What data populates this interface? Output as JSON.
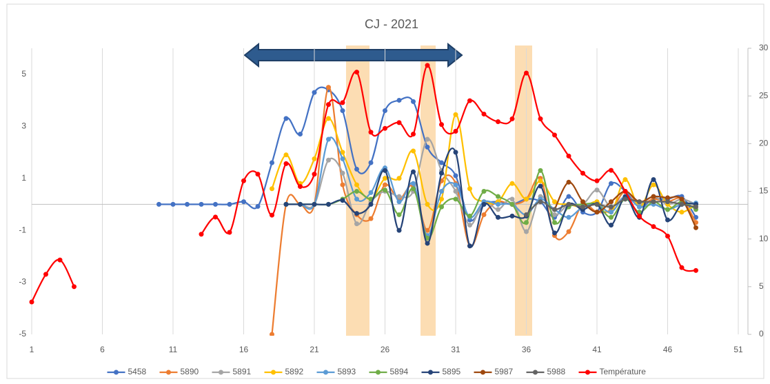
{
  "chart_data": {
    "type": "line",
    "title": "CJ - 2021",
    "x": [
      1,
      2,
      3,
      4,
      5,
      6,
      7,
      8,
      9,
      10,
      11,
      12,
      13,
      14,
      15,
      16,
      17,
      18,
      19,
      20,
      21,
      22,
      23,
      24,
      25,
      26,
      27,
      28,
      29,
      30,
      31,
      32,
      33,
      34,
      35,
      36,
      37,
      38,
      39,
      40,
      41,
      42,
      43,
      44,
      45,
      46,
      47,
      48
    ],
    "xlim": [
      1,
      51
    ],
    "xticks": [
      1,
      6,
      11,
      16,
      21,
      26,
      31,
      36,
      41,
      46,
      51
    ],
    "ylim": [
      -5,
      6
    ],
    "yticks": [
      -5,
      -3,
      -1,
      1,
      3,
      5
    ],
    "y2lim": [
      0,
      30
    ],
    "y2ticks": [
      0,
      5,
      10,
      15,
      20,
      25,
      30
    ],
    "grid": true,
    "legend": "bottom",
    "series": [
      {
        "name": "5458",
        "color": "#4472c4",
        "values": [
          null,
          null,
          null,
          null,
          null,
          null,
          null,
          null,
          null,
          0,
          0,
          0,
          0,
          0,
          0,
          0.1,
          -0.08,
          1.6,
          3.3,
          2.7,
          4.3,
          4.4,
          3.6,
          1.35,
          1.6,
          3.6,
          4.0,
          3.95,
          2.2,
          1.6,
          1.1,
          -0.6,
          0,
          0.1,
          0,
          0.2,
          0.1,
          -0.5,
          0.3,
          -0.3,
          -0.3,
          0.8,
          0.5,
          -0.1,
          0.2,
          0.2,
          0.3,
          -0.5
        ]
      },
      {
        "name": "5890",
        "color": "#ed7d31",
        "values": [
          null,
          null,
          null,
          null,
          null,
          null,
          null,
          null,
          null,
          null,
          null,
          null,
          null,
          null,
          null,
          null,
          null,
          -5,
          0,
          0,
          0,
          4.5,
          0.75,
          -0.4,
          -0.55,
          0.75,
          0.2,
          0.7,
          -1.0,
          0.9,
          0.8,
          -1.6,
          -0.4,
          0.1,
          0,
          0.2,
          1.0,
          -1.2,
          -1.05,
          0,
          -0.3,
          -0.2,
          0.5,
          0,
          0.2,
          0.1,
          0.2,
          -0.7
        ]
      },
      {
        "name": "5891",
        "color": "#a5a5a5",
        "values": [
          null,
          null,
          null,
          null,
          null,
          null,
          null,
          null,
          null,
          null,
          null,
          null,
          null,
          null,
          null,
          null,
          null,
          null,
          0,
          0,
          0,
          1.7,
          1.2,
          -0.75,
          0.1,
          0.5,
          0.3,
          0.5,
          2.5,
          1.3,
          0.5,
          -0.8,
          0.1,
          -0.2,
          0.2,
          -1.05,
          0.3,
          -0.4,
          0,
          0,
          0.55,
          -0.1,
          0.3,
          0,
          0.3,
          0,
          0.2,
          0
        ]
      },
      {
        "name": "5892",
        "color": "#ffc000",
        "values": [
          null,
          null,
          null,
          null,
          null,
          null,
          null,
          null,
          null,
          null,
          null,
          null,
          null,
          null,
          null,
          null,
          null,
          0.6,
          1.9,
          0.8,
          1.75,
          3.3,
          2.0,
          0.75,
          0.2,
          1.0,
          1.0,
          2.05,
          0,
          0.2,
          3.45,
          0.6,
          0.1,
          0.1,
          0.8,
          0.2,
          0.9,
          0.1,
          0,
          -0.1,
          0.1,
          -0.3,
          0.95,
          -0.1,
          0.75,
          0,
          -0.3,
          0
        ]
      },
      {
        "name": "5893",
        "color": "#5b9bd5",
        "values": [
          null,
          null,
          null,
          null,
          null,
          null,
          null,
          null,
          null,
          null,
          null,
          null,
          null,
          null,
          null,
          null,
          null,
          null,
          0,
          0,
          0,
          2.5,
          1.75,
          0.2,
          0.45,
          1.4,
          0.1,
          0.8,
          -1.2,
          0.5,
          0.75,
          -0.5,
          0.1,
          0,
          0,
          -0.4,
          0.2,
          -0.2,
          -0.5,
          -0.1,
          0,
          -0.3,
          0.3,
          -0.1,
          0,
          -0.2,
          0,
          0.05
        ]
      },
      {
        "name": "5894",
        "color": "#70ad47",
        "values": [
          null,
          null,
          null,
          null,
          null,
          null,
          null,
          null,
          null,
          null,
          null,
          null,
          null,
          null,
          null,
          null,
          null,
          null,
          0,
          0,
          0,
          0,
          0.2,
          0.5,
          0.2,
          0.55,
          -0.4,
          0.6,
          -1.3,
          -0.1,
          0.2,
          -0.45,
          0.5,
          0.3,
          0,
          -0.7,
          1.3,
          -0.7,
          -0.1,
          0,
          0,
          -0.5,
          0.2,
          -0.3,
          0.1,
          -0.2,
          0.1,
          -0.2
        ]
      },
      {
        "name": "5895",
        "color": "#264478",
        "values": [
          null,
          null,
          null,
          null,
          null,
          null,
          null,
          null,
          null,
          null,
          null,
          null,
          null,
          null,
          null,
          null,
          null,
          null,
          0,
          0,
          0,
          0,
          0.15,
          -0.35,
          0,
          1.3,
          -1.0,
          1.25,
          -1.5,
          1.2,
          2.0,
          -1.6,
          0,
          -0.5,
          -0.45,
          -0.45,
          0.7,
          -1.1,
          0,
          -0.2,
          0,
          -0.8,
          0.3,
          -0.5,
          0.95,
          -0.6,
          0,
          0
        ]
      },
      {
        "name": "5987",
        "color": "#9e480e",
        "values": [
          null,
          null,
          null,
          null,
          null,
          null,
          null,
          null,
          null,
          null,
          null,
          null,
          null,
          null,
          null,
          null,
          null,
          null,
          null,
          null,
          null,
          null,
          null,
          null,
          null,
          null,
          null,
          null,
          null,
          null,
          null,
          null,
          null,
          null,
          null,
          null,
          null,
          -0.2,
          0.85,
          0.1,
          -0.3,
          0.1,
          0.5,
          0.1,
          0.3,
          0.25,
          0.2,
          -0.9
        ]
      },
      {
        "name": "5988",
        "color": "#636363",
        "values": [
          null,
          null,
          null,
          null,
          null,
          null,
          null,
          null,
          null,
          null,
          null,
          null,
          null,
          null,
          null,
          null,
          null,
          null,
          null,
          null,
          null,
          null,
          null,
          null,
          null,
          null,
          null,
          null,
          null,
          null,
          null,
          null,
          null,
          null,
          null,
          -0.4,
          0.1,
          -0.2,
          0,
          -0.1,
          0,
          -0.1,
          0.2,
          0.1,
          0.1,
          0.1,
          0,
          -0.1
        ]
      },
      {
        "name": "Température",
        "color": "#ff0000",
        "axis": "y2",
        "values": [
          3.4,
          6.3,
          7.8,
          5.0,
          null,
          null,
          null,
          null,
          null,
          null,
          null,
          null,
          10.5,
          12.3,
          10.7,
          16.1,
          16.8,
          12.5,
          17.9,
          15.5,
          16.8,
          24.1,
          24.3,
          27.5,
          21.2,
          21.6,
          22.2,
          21.0,
          28.2,
          22.0,
          21.3,
          24.5,
          23.1,
          22.3,
          22.6,
          27.4,
          22.6,
          20.9,
          18.7,
          16.9,
          16.1,
          17.2,
          15.0,
          12.4,
          11.3,
          10.3,
          7.0,
          6.7
        ]
      }
    ]
  }
}
